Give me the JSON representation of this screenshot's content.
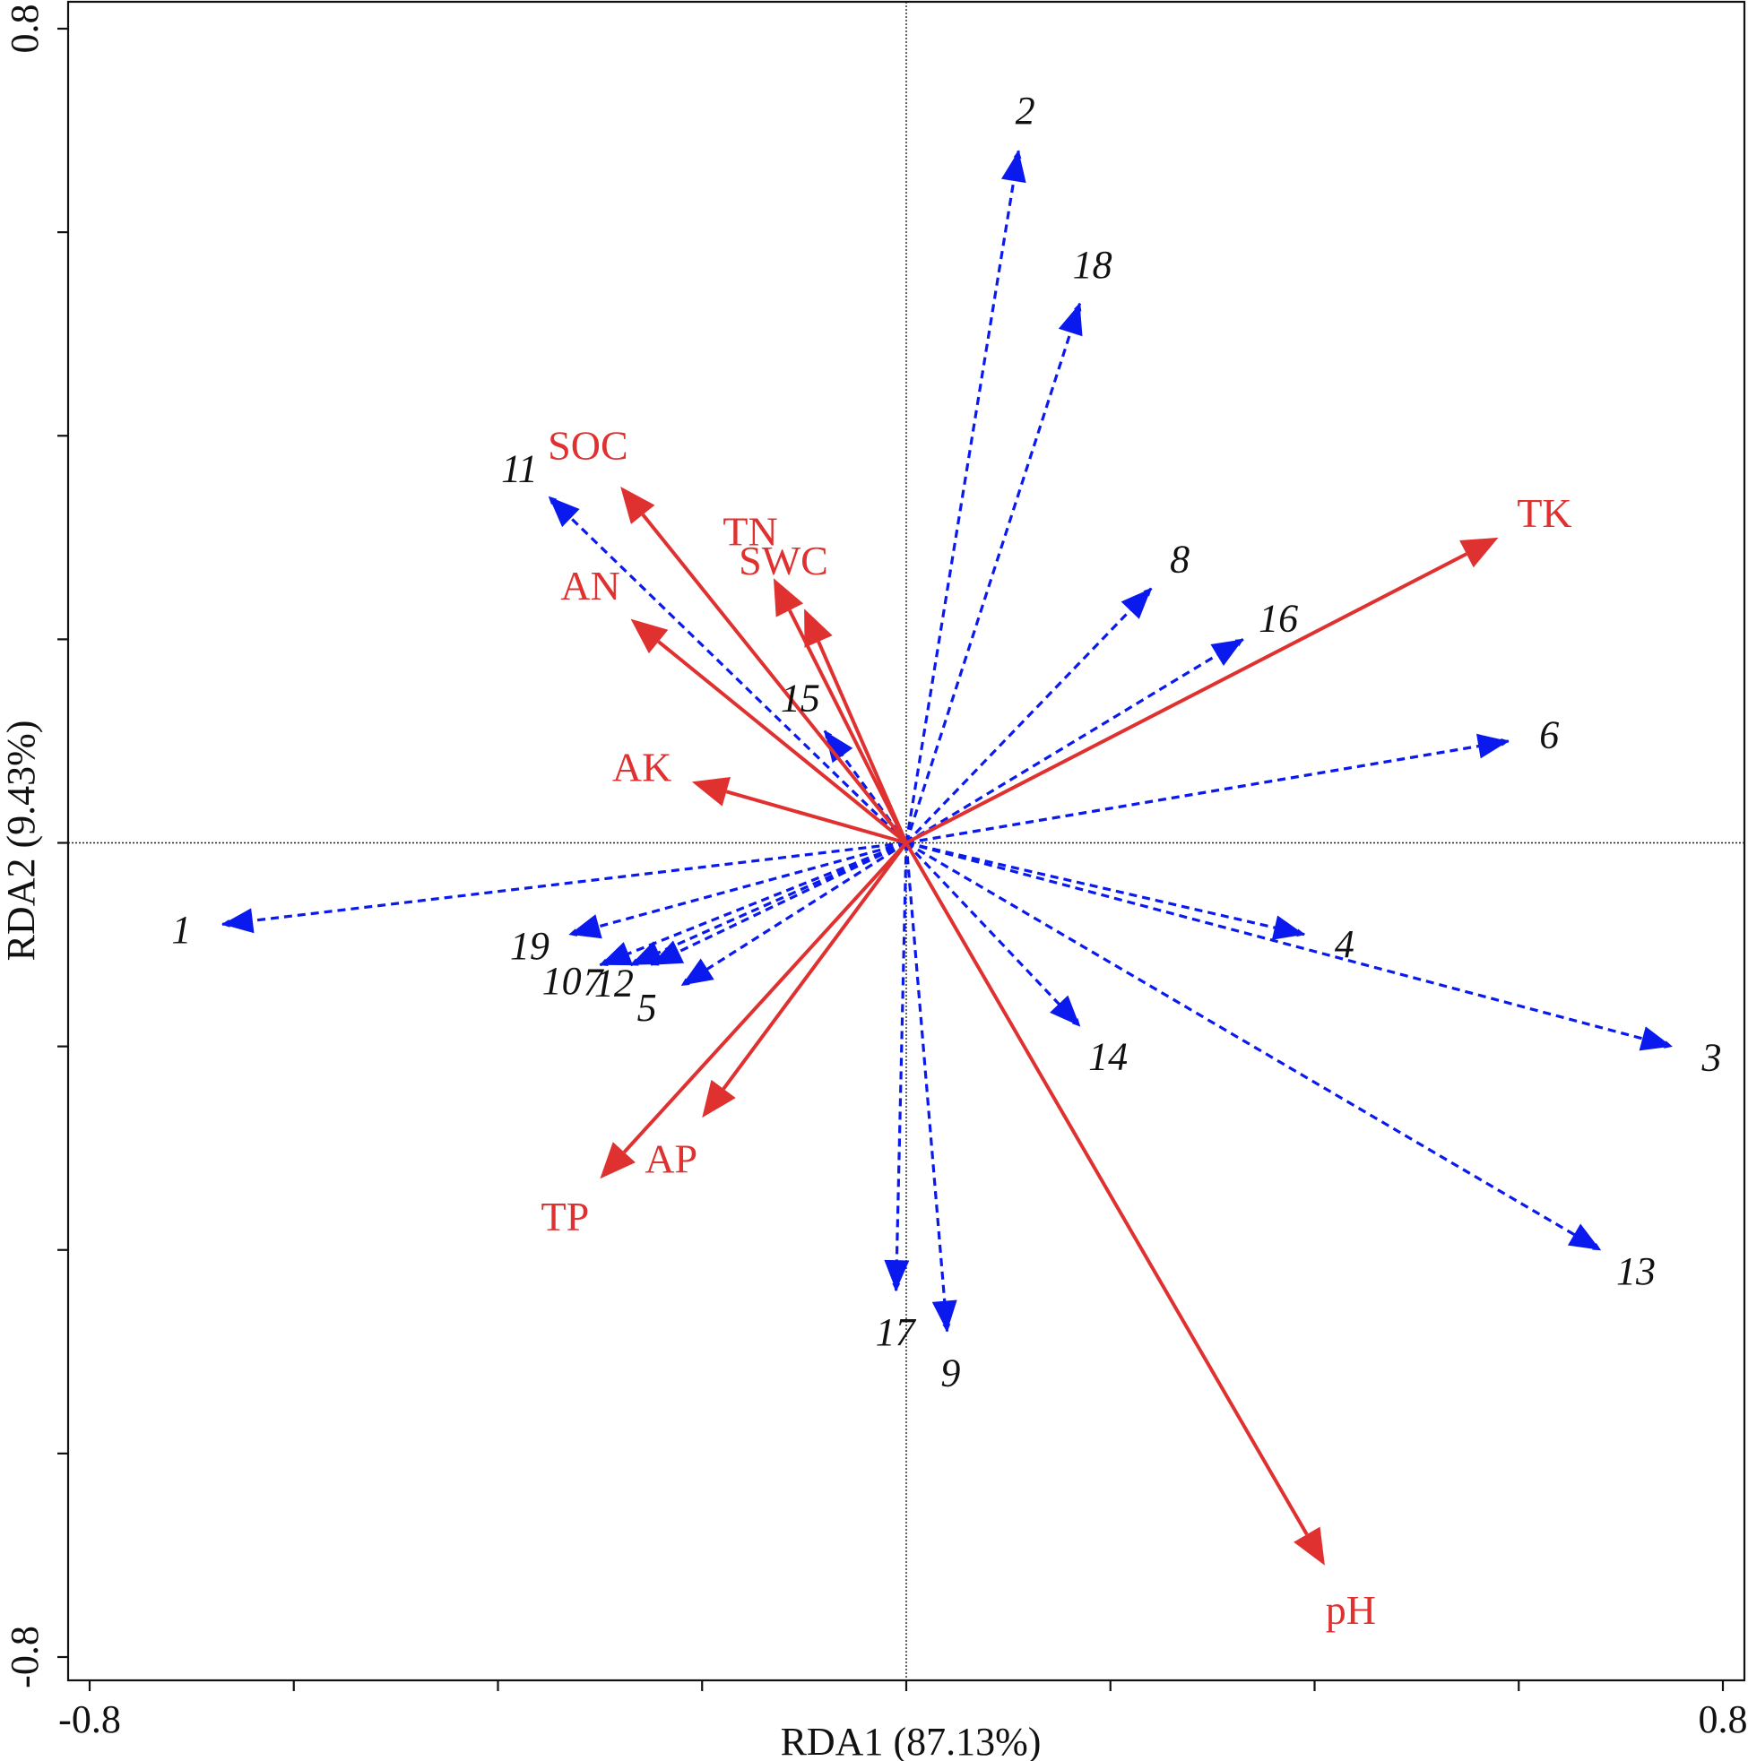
{
  "chart_data": {
    "type": "rda-biplot",
    "xlabel": "RDA1 (87.13%)",
    "ylabel": "RDA2 (9.43%)",
    "xlim": [
      -0.8,
      0.8
    ],
    "ylim": [
      -0.8,
      0.8
    ],
    "x_tick_labels": [
      {
        "value": -0.8,
        "label": "-0.8"
      },
      {
        "value": 0.8,
        "label": "0.8"
      }
    ],
    "y_tick_labels": [
      {
        "value": -0.8,
        "label": "-0.8"
      },
      {
        "value": 0.8,
        "label": "0.8"
      }
    ],
    "tick_step": 0.2,
    "zero_lines": true,
    "env_color": "#e03131",
    "species_color": "#0a1aee",
    "environment_vectors": [
      {
        "name": "TK",
        "x": 0.58,
        "y": 0.3
      },
      {
        "name": "SOC",
        "x": -0.28,
        "y": 0.35
      },
      {
        "name": "TN",
        "x": -0.13,
        "y": 0.26
      },
      {
        "name": "SWC",
        "x": -0.1,
        "y": 0.23
      },
      {
        "name": "AN",
        "x": -0.27,
        "y": 0.22
      },
      {
        "name": "AK",
        "x": -0.21,
        "y": 0.06
      },
      {
        "name": "AP",
        "x": -0.2,
        "y": -0.27
      },
      {
        "name": "TP",
        "x": -0.3,
        "y": -0.33
      },
      {
        "name": "pH",
        "x": 0.41,
        "y": -0.71
      }
    ],
    "species_vectors": [
      {
        "name": "1",
        "x": -0.67,
        "y": -0.08
      },
      {
        "name": "2",
        "x": 0.11,
        "y": 0.68
      },
      {
        "name": "3",
        "x": 0.75,
        "y": -0.2
      },
      {
        "name": "4",
        "x": 0.39,
        "y": -0.09
      },
      {
        "name": "5",
        "x": -0.22,
        "y": -0.14
      },
      {
        "name": "6",
        "x": 0.59,
        "y": 0.1
      },
      {
        "name": "7",
        "x": -0.27,
        "y": -0.12
      },
      {
        "name": "8",
        "x": 0.24,
        "y": 0.25
      },
      {
        "name": "9",
        "x": 0.04,
        "y": -0.48
      },
      {
        "name": "10",
        "x": -0.3,
        "y": -0.12
      },
      {
        "name": "11",
        "x": -0.35,
        "y": 0.34
      },
      {
        "name": "12",
        "x": -0.25,
        "y": -0.12
      },
      {
        "name": "13",
        "x": 0.68,
        "y": -0.4
      },
      {
        "name": "14",
        "x": 0.17,
        "y": -0.18
      },
      {
        "name": "15",
        "x": -0.08,
        "y": 0.11
      },
      {
        "name": "16",
        "x": 0.33,
        "y": 0.2
      },
      {
        "name": "17",
        "x": -0.01,
        "y": -0.44
      },
      {
        "name": "18",
        "x": 0.17,
        "y": 0.53
      },
      {
        "name": "19",
        "x": -0.33,
        "y": -0.09
      }
    ]
  }
}
